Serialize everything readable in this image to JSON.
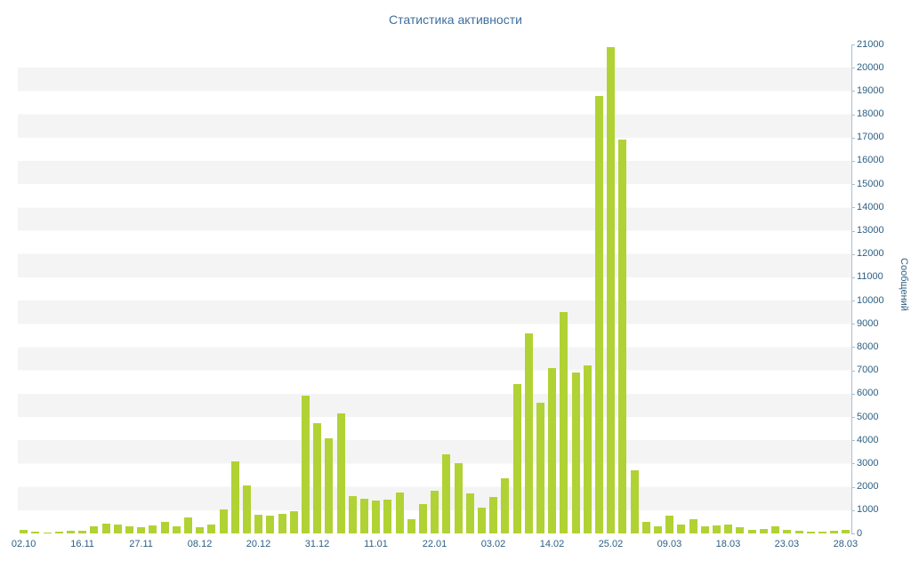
{
  "chart": {
    "title": "Статистика активности",
    "ylabel": "Сообщений"
  },
  "chart_data": {
    "type": "bar",
    "title": "Статистика активности",
    "xlabel": "",
    "ylabel": "Сообщений",
    "ylim": [
      0,
      21000
    ],
    "y_tick_step": 1000,
    "legend": "none",
    "grid": "striped-bands",
    "bar_color": "#b1d235",
    "stripe_color": "#f4f4f4",
    "axis_line_color": "#a9bfcf",
    "axis_text_color": "#2c5f82",
    "title_color": "#3f6e9e",
    "x_tick_labels": [
      "02.10",
      "16.11",
      "27.11",
      "08.12",
      "20.12",
      "31.12",
      "11.01",
      "22.01",
      "03.02",
      "14.02",
      "25.02",
      "09.03",
      "18.03",
      "23.03",
      "28.03"
    ],
    "label_every": 5,
    "values": [
      150,
      80,
      40,
      60,
      100,
      120,
      300,
      420,
      380,
      300,
      260,
      350,
      500,
      300,
      700,
      280,
      380,
      1050,
      3100,
      2050,
      800,
      750,
      850,
      950,
      5900,
      4750,
      4100,
      5150,
      1600,
      1500,
      1400,
      1450,
      1750,
      600,
      1250,
      1850,
      3400,
      3000,
      1700,
      1100,
      1550,
      2350,
      6400,
      8600,
      5600,
      7100,
      9500,
      6900,
      7200,
      18800,
      20900,
      16900,
      2700,
      500,
      300,
      750,
      400,
      600,
      300,
      350,
      400,
      250,
      150,
      200,
      300,
      150,
      100,
      80,
      60,
      100,
      150
    ]
  }
}
